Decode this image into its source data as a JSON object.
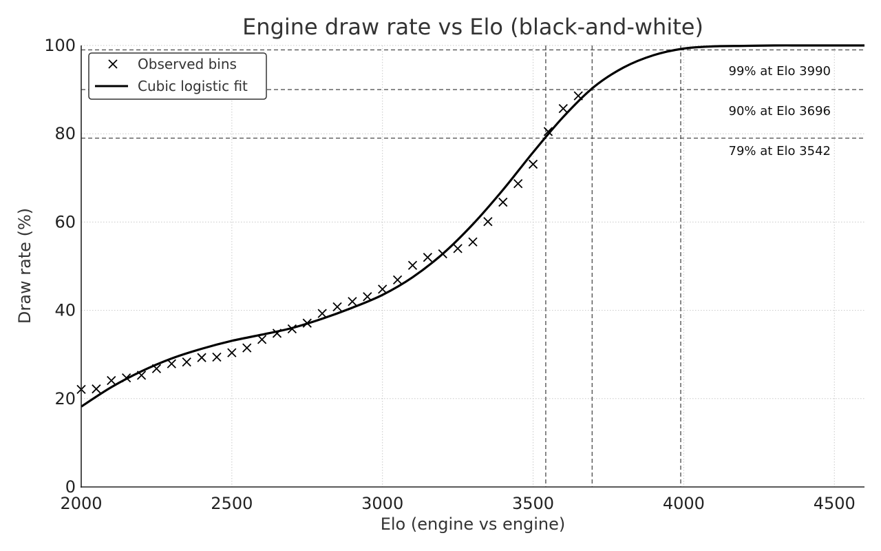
{
  "chart_data": {
    "type": "scatter",
    "title": "Engine draw rate vs Elo (black-and-white)",
    "xlabel": "Elo (engine vs engine)",
    "ylabel": "Draw rate (%)",
    "xlim": [
      2000,
      4600
    ],
    "ylim": [
      0,
      100
    ],
    "xticks": [
      2000,
      2500,
      3000,
      3500,
      4000,
      4500
    ],
    "yticks": [
      0,
      20,
      40,
      60,
      80,
      100
    ],
    "grid": true,
    "legend": {
      "placement": "top-left",
      "entries": [
        "Observed bins",
        "Cubic logistic fit"
      ]
    },
    "series": [
      {
        "name": "Observed bins",
        "kind": "scatter",
        "marker": "x",
        "color": "#000000",
        "x": [
          2000,
          2050,
          2100,
          2150,
          2200,
          2250,
          2300,
          2350,
          2400,
          2450,
          2500,
          2550,
          2600,
          2650,
          2700,
          2750,
          2800,
          2850,
          2900,
          2950,
          3000,
          3050,
          3100,
          3150,
          3200,
          3250,
          3300,
          3350,
          3400,
          3450,
          3500,
          3550,
          3600,
          3650
        ],
        "y": [
          22.1,
          22.2,
          24.1,
          24.7,
          25.3,
          26.8,
          27.9,
          28.3,
          29.3,
          29.4,
          30.4,
          31.5,
          33.4,
          34.8,
          35.8,
          37.1,
          39.3,
          40.8,
          42.0,
          43.1,
          44.8,
          46.9,
          50.2,
          52.0,
          52.8,
          54.0,
          55.5,
          60.1,
          64.5,
          68.7,
          73.1,
          80.5,
          85.7,
          88.6
        ]
      },
      {
        "name": "Cubic logistic fit",
        "kind": "line",
        "color": "#000000",
        "x": [
          2000,
          2100,
          2200,
          2300,
          2400,
          2500,
          2600,
          2700,
          2800,
          2900,
          3000,
          3100,
          3200,
          3300,
          3400,
          3500,
          3600,
          3700,
          3800,
          3900,
          4000,
          4100,
          4200,
          4300,
          4400,
          4500,
          4600
        ],
        "y": [
          18.2,
          22.6,
          26.2,
          29.1,
          31.3,
          33.1,
          34.5,
          36.0,
          38.1,
          40.6,
          43.5,
          47.5,
          52.8,
          59.5,
          67.3,
          75.8,
          83.8,
          90.5,
          95.0,
          97.8,
          99.3,
          99.8,
          99.9,
          100.0,
          100.0,
          100.0,
          100.0
        ]
      }
    ],
    "reference_lines": [
      {
        "level": 99,
        "elo": 3990,
        "label": "99% at Elo 3990"
      },
      {
        "level": 90,
        "elo": 3696,
        "label": "90% at Elo 3696"
      },
      {
        "level": 79,
        "elo": 3542,
        "label": "79% at Elo 3542"
      }
    ]
  }
}
